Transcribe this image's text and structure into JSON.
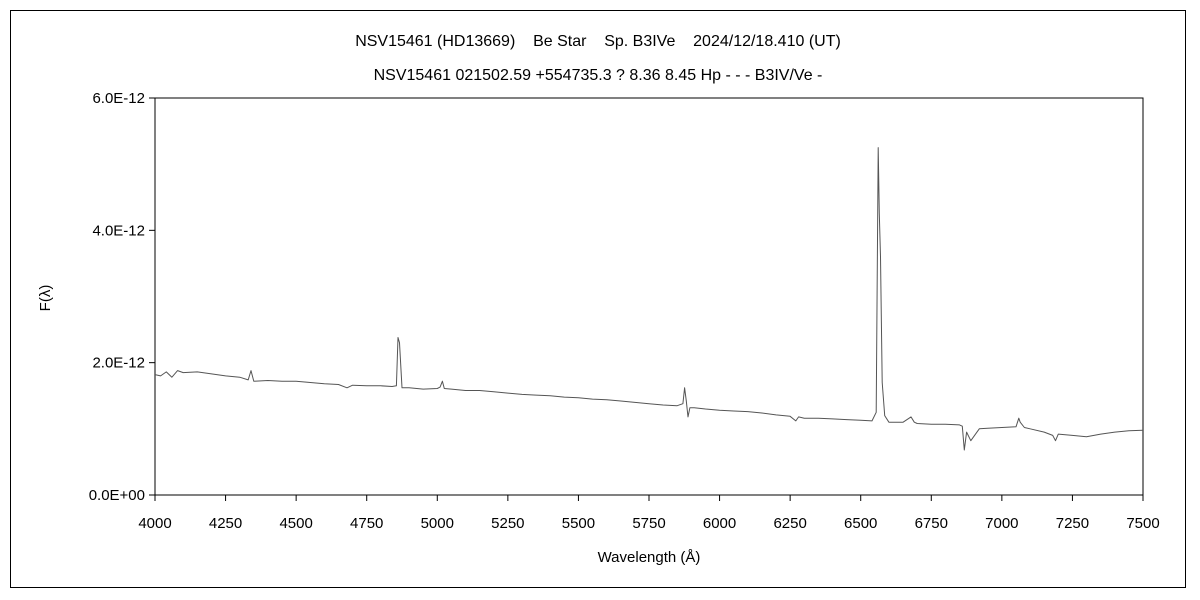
{
  "chart_data": {
    "type": "line",
    "title": "NSV15461 (HD13669)    Be Star    Sp. B3IVe    2024/12/18.410 (UT)",
    "subtitle": "NSV15461 021502.59 +554735.3 ? 8.36 8.45 Hp - - - B3IV/Ve -",
    "xlabel": "Wavelength (Å)",
    "ylabel": "F(λ)",
    "xlim": [
      4000,
      7500
    ],
    "ylim": [
      0,
      6e-12
    ],
    "x_ticks": [
      "4000",
      "4250",
      "4500",
      "4750",
      "5000",
      "5250",
      "5500",
      "5750",
      "6000",
      "6250",
      "6500",
      "6750",
      "7000",
      "7250",
      "7500"
    ],
    "y_ticks": [
      "0.0E+00",
      "2.0E-12",
      "4.0E-12",
      "6.0E-12"
    ],
    "y_tick_values": [
      0,
      2e-12,
      4e-12,
      6e-12
    ],
    "grid": false,
    "legend": "none",
    "line_color": "#555555",
    "series": [
      {
        "x": [
          4000,
          4020,
          4040,
          4060,
          4080,
          4100,
          4150,
          4200,
          4250,
          4300,
          4330,
          4340,
          4350,
          4400,
          4450,
          4500,
          4550,
          4600,
          4650,
          4680,
          4700,
          4750,
          4800,
          4840,
          4855,
          4861,
          4866,
          4875,
          4900,
          4950,
          5000,
          5010,
          5018,
          5025,
          5050,
          5100,
          5150,
          5200,
          5250,
          5300,
          5350,
          5400,
          5450,
          5500,
          5550,
          5600,
          5650,
          5700,
          5750,
          5800,
          5850,
          5870,
          5876,
          5882,
          5888,
          5895,
          5910,
          5950,
          6000,
          6050,
          6100,
          6150,
          6200,
          6250,
          6270,
          6280,
          6300,
          6350,
          6400,
          6450,
          6500,
          6540,
          6555,
          6562,
          6566,
          6570,
          6576,
          6585,
          6600,
          6650,
          6678,
          6690,
          6700,
          6750,
          6800,
          6850,
          6860,
          6867,
          6875,
          6890,
          6920,
          6950,
          7000,
          7050,
          7060,
          7065,
          7080,
          7100,
          7150,
          7180,
          7190,
          7200,
          7250,
          7300,
          7350,
          7400,
          7450,
          7500
        ],
        "y": [
          1.82e-12,
          1.8e-12,
          1.86e-12,
          1.78e-12,
          1.88e-12,
          1.85e-12,
          1.86e-12,
          1.83e-12,
          1.8e-12,
          1.78e-12,
          1.74e-12,
          1.88e-12,
          1.72e-12,
          1.73e-12,
          1.72e-12,
          1.72e-12,
          1.7e-12,
          1.68e-12,
          1.67e-12,
          1.62e-12,
          1.66e-12,
          1.65e-12,
          1.65e-12,
          1.64e-12,
          1.65e-12,
          2.38e-12,
          2.3e-12,
          1.62e-12,
          1.62e-12,
          1.6e-12,
          1.61e-12,
          1.63e-12,
          1.72e-12,
          1.61e-12,
          1.6e-12,
          1.58e-12,
          1.58e-12,
          1.56e-12,
          1.54e-12,
          1.52e-12,
          1.51e-12,
          1.5e-12,
          1.48e-12,
          1.47e-12,
          1.45e-12,
          1.44e-12,
          1.42e-12,
          1.4e-12,
          1.38e-12,
          1.36e-12,
          1.35e-12,
          1.38e-12,
          1.62e-12,
          1.42e-12,
          1.18e-12,
          1.32e-12,
          1.32e-12,
          1.3e-12,
          1.28e-12,
          1.27e-12,
          1.26e-12,
          1.24e-12,
          1.21e-12,
          1.19e-12,
          1.12e-12,
          1.18e-12,
          1.16e-12,
          1.16e-12,
          1.15e-12,
          1.14e-12,
          1.13e-12,
          1.12e-12,
          1.25e-12,
          5.25e-12,
          4.25e-12,
          3.6e-12,
          1.7e-12,
          1.2e-12,
          1.1e-12,
          1.1e-12,
          1.18e-12,
          1.1e-12,
          1.08e-12,
          1.07e-12,
          1.07e-12,
          1.06e-12,
          1.04e-12,
          6.8e-13,
          9.5e-13,
          8.2e-13,
          1e-12,
          1.01e-12,
          1.02e-12,
          1.03e-12,
          1.16e-12,
          1.1e-12,
          1.02e-12,
          1e-12,
          9.5e-13,
          9e-13,
          8.2e-13,
          9.2e-13,
          9e-13,
          8.8e-13,
          9.2e-13,
          9.5e-13,
          9.7e-13,
          9.8e-13
        ]
      }
    ]
  }
}
